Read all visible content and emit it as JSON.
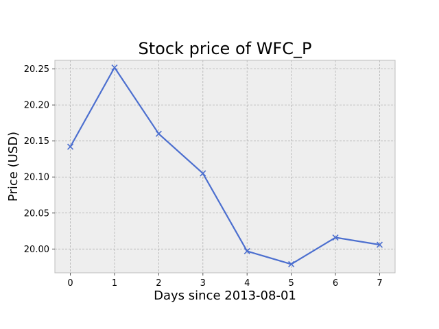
{
  "chart_data": {
    "type": "line",
    "title": "Stock price of WFC_P",
    "xlabel": "Days since 2013-08-01",
    "ylabel": "Price (USD)",
    "x": [
      0,
      1,
      2,
      3,
      4,
      5,
      6,
      7
    ],
    "series": [
      {
        "values": [
          20.142,
          20.252,
          20.16,
          20.105,
          19.997,
          19.979,
          20.016,
          20.006
        ],
        "color": "#4c6fcf",
        "marker": "x"
      }
    ],
    "xlim": [
      -0.35,
      7.35
    ],
    "ylim": [
      19.967,
      20.262
    ],
    "xticks": [
      "0",
      "1",
      "2",
      "3",
      "4",
      "5",
      "6",
      "7"
    ],
    "yticks": [
      "20.00",
      "20.05",
      "20.10",
      "20.15",
      "20.20",
      "20.25"
    ],
    "grid": true,
    "legend": "none",
    "plot_background": "#eeeeee"
  }
}
